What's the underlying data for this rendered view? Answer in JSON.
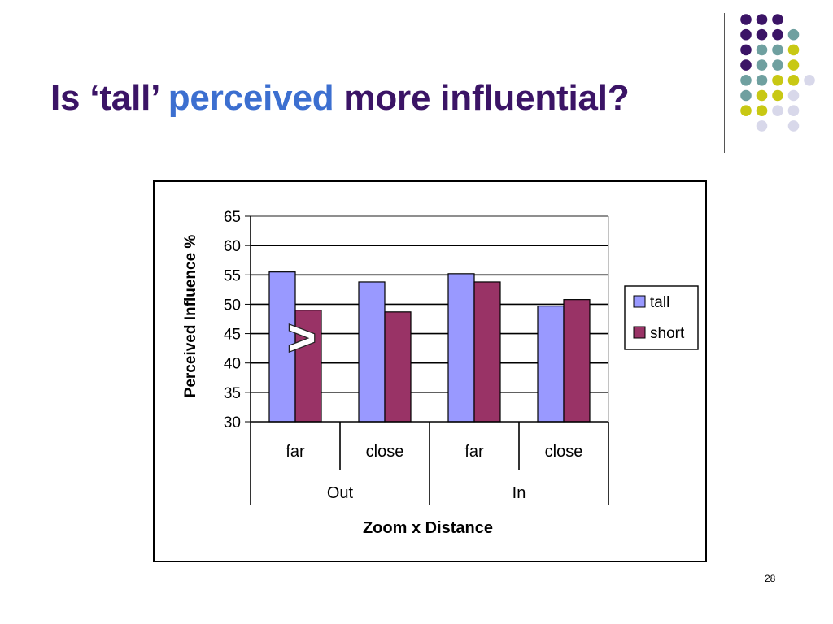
{
  "slide": {
    "title_part1": "Is ‘tall’ ",
    "title_highlight": "perceived",
    "title_part2": " more influential?",
    "page_number": "28",
    "annotation": ">"
  },
  "colors": {
    "title": "#3b1466",
    "highlight": "#3c6fd0",
    "tall": "#9999ff",
    "short": "#993366",
    "deco_purple": "#3b1466",
    "deco_teal": "#6fa0a0",
    "deco_yellow": "#c8c814",
    "deco_lavender": "#d8d8ea"
  },
  "chart_data": {
    "type": "bar",
    "ylabel": "Perceived Influence %",
    "xlabel": "Zoom x Distance",
    "ylim": [
      30,
      65
    ],
    "yticks": [
      "65",
      "60",
      "55",
      "50",
      "45",
      "40",
      "35",
      "30"
    ],
    "grid": true,
    "legend_position": "right",
    "categories": [
      "far",
      "close",
      "far",
      "close"
    ],
    "groups": [
      "Out",
      "In"
    ],
    "series": [
      {
        "name": "tall",
        "values": [
          55.5,
          53.8,
          55.2,
          49.7
        ]
      },
      {
        "name": "short",
        "values": [
          49.0,
          48.7,
          53.8,
          50.8
        ]
      }
    ]
  }
}
